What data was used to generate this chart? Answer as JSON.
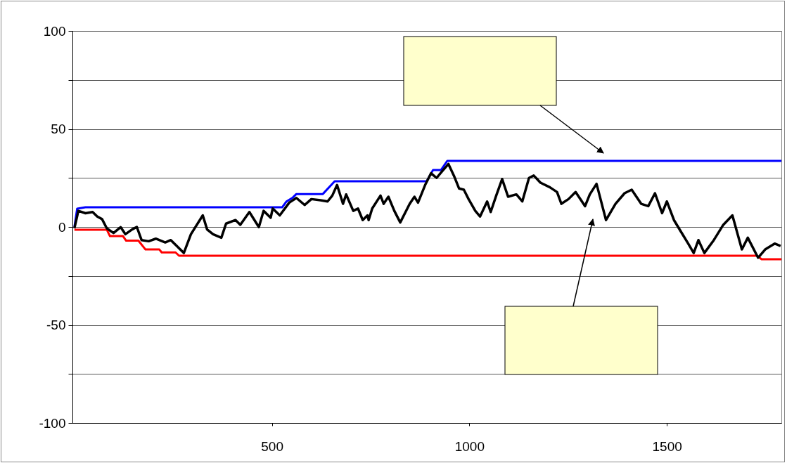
{
  "chart_data": {
    "type": "line",
    "xlim": [
      -5,
      1790
    ],
    "xticks": [
      500,
      1000,
      1500
    ],
    "ylim": [
      -100,
      100
    ],
    "yticks": [
      -100,
      {
        "value": -75,
        "label": null
      },
      -50,
      {
        "value": -25,
        "label": null
      },
      0,
      {
        "value": 25,
        "label": null
      },
      50,
      {
        "value": 75,
        "label": null
      },
      100
    ],
    "grid": "y",
    "tick_labels": "xy",
    "series": [
      {
        "color": "#0000ff",
        "x": [
          0,
          7,
          28,
          526,
          537,
          553,
          562,
          629,
          659,
          892,
          908,
          928,
          944,
          1790
        ],
        "values": [
          0,
          9.3,
          10,
          10,
          13,
          15,
          16.8,
          16.8,
          23.3,
          23.3,
          29,
          29,
          33.7,
          33.7
        ]
      },
      {
        "color": "#ff0000",
        "x": [
          0,
          82,
          90,
          123,
          131,
          162,
          180,
          215,
          221,
          256,
          265,
          1728,
          1740,
          1790
        ],
        "values": [
          -1.4,
          -1.4,
          -4.7,
          -4.7,
          -7,
          -7,
          -11.5,
          -11.5,
          -13,
          -13,
          -14.7,
          -14.7,
          -16.5,
          -16.5
        ]
      },
      {
        "color": "#000000",
        "x": [
          0,
          10,
          28,
          46,
          58,
          70,
          82,
          99,
          117,
          129,
          146,
          158,
          170,
          188,
          206,
          230,
          244,
          259,
          277,
          295,
          325,
          336,
          351,
          372,
          384,
          408,
          420,
          443,
          467,
          479,
          497,
          502,
          520,
          544,
          562,
          583,
          600,
          623,
          641,
          653,
          665,
          680,
          688,
          706,
          718,
          730,
          742,
          745,
          754,
          775,
          783,
          795,
          810,
          825,
          849,
          861,
          870,
          888,
          903,
          917,
          932,
          947,
          962,
          974,
          986,
          998,
          1015,
          1027,
          1045,
          1054,
          1068,
          1083,
          1098,
          1119,
          1134,
          1151,
          1163,
          1180,
          1204,
          1222,
          1233,
          1251,
          1269,
          1293,
          1305,
          1322,
          1346,
          1370,
          1393,
          1411,
          1435,
          1453,
          1470,
          1488,
          1500,
          1518,
          1536,
          1554,
          1568,
          1580,
          1595,
          1619,
          1643,
          1666,
          1690,
          1705,
          1731,
          1749,
          1773,
          1788
        ],
        "values": [
          -0.7,
          8.2,
          7,
          7.6,
          5.3,
          4,
          -0.7,
          -3.1,
          -0.1,
          -3.7,
          -1.3,
          0,
          -6.7,
          -7.3,
          -6,
          -7.9,
          -6.7,
          -9.7,
          -13.3,
          -3.7,
          5.9,
          -1.3,
          -3.7,
          -5.5,
          1.7,
          3.5,
          1.1,
          7.6,
          -0.1,
          8.2,
          4.7,
          9.4,
          5.9,
          12.4,
          14.8,
          11.2,
          14.2,
          13.6,
          13,
          16,
          21.4,
          11.8,
          16.6,
          8.2,
          9.4,
          3.5,
          5.9,
          3.5,
          9.4,
          16,
          11.8,
          15.4,
          8.2,
          2.3,
          11.8,
          15.4,
          12.4,
          21.4,
          27.4,
          25,
          28.6,
          32.1,
          25.6,
          19.6,
          19,
          14.2,
          8.2,
          5.3,
          13,
          7.6,
          16,
          24.4,
          15.4,
          16.6,
          13,
          25,
          26.2,
          22.6,
          20.2,
          17.8,
          11.8,
          14.2,
          17.8,
          10.6,
          16.6,
          22,
          3.5,
          11.8,
          17.2,
          19,
          11.8,
          10.6,
          17.2,
          7,
          13,
          3.5,
          -2.5,
          -8.5,
          -13.3,
          -6.7,
          -13.3,
          -6.7,
          1.1,
          5.9,
          -11.5,
          -5.5,
          -15.7,
          -11.5,
          -8.5,
          -9.7
        ]
      }
    ]
  }
}
